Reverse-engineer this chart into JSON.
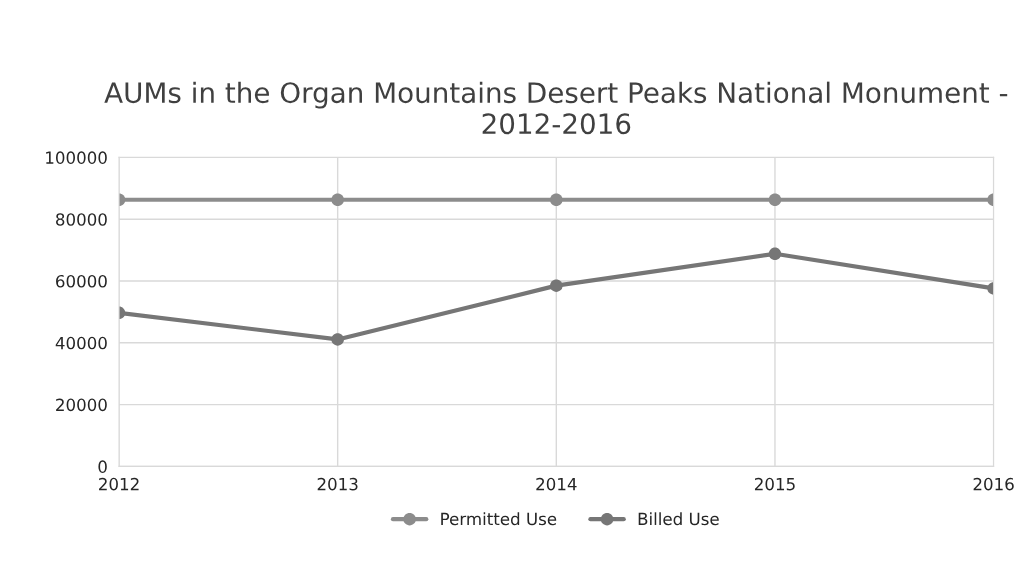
{
  "chart_data": {
    "type": "line",
    "title": "AUMs in the Organ Mountains Desert Peaks National Monument - 2012-2016",
    "x": [
      2012,
      2013,
      2014,
      2015,
      2016
    ],
    "series": [
      {
        "name": "Permitted Use",
        "color": "#8c8c8c",
        "values": [
          86300,
          86300,
          86300,
          86300,
          86300
        ]
      },
      {
        "name": "Billed Use",
        "color": "#767676",
        "values": [
          49700,
          41100,
          58500,
          68800,
          57600
        ]
      }
    ],
    "xlim": [
      2012,
      2016
    ],
    "xticks": [
      2012,
      2013,
      2014,
      2015,
      2016
    ],
    "ylim": [
      0,
      100000
    ],
    "yticks": [
      0,
      20000,
      40000,
      60000,
      80000,
      100000
    ],
    "grid": true,
    "legend": "bottom",
    "marker": "circle",
    "line_style": "solid"
  }
}
